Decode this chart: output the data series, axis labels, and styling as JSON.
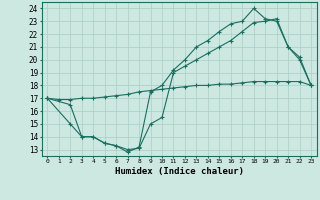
{
  "xlabel": "Humidex (Indice chaleur)",
  "bg_color": "#cce8e0",
  "grid_color": "#aacec8",
  "line_color": "#1a6e60",
  "xlim": [
    -0.5,
    23.5
  ],
  "ylim": [
    12.5,
    24.5
  ],
  "xticks": [
    0,
    1,
    2,
    3,
    4,
    5,
    6,
    7,
    8,
    9,
    10,
    11,
    12,
    13,
    14,
    15,
    16,
    17,
    18,
    19,
    20,
    21,
    22,
    23
  ],
  "yticks": [
    13,
    14,
    15,
    16,
    17,
    18,
    19,
    20,
    21,
    22,
    23,
    24
  ],
  "line1_x": [
    0,
    1,
    2,
    3,
    4,
    5,
    6,
    7,
    8,
    9,
    10,
    11,
    12,
    13,
    14,
    15,
    16,
    17,
    18,
    19,
    20,
    21,
    22,
    23
  ],
  "line1_y": [
    17.0,
    16.9,
    16.9,
    17.0,
    17.0,
    17.1,
    17.2,
    17.3,
    17.5,
    17.6,
    17.7,
    17.8,
    17.9,
    18.0,
    18.0,
    18.1,
    18.1,
    18.2,
    18.3,
    18.3,
    18.3,
    18.3,
    18.3,
    18.0
  ],
  "line2_x": [
    0,
    2,
    3,
    4,
    5,
    6,
    7,
    8,
    9,
    10,
    11,
    12,
    13,
    14,
    15,
    16,
    17,
    18,
    19,
    20,
    21,
    22,
    23
  ],
  "line2_y": [
    17.0,
    16.5,
    14.0,
    14.0,
    13.5,
    13.3,
    13.0,
    13.1,
    15.0,
    15.5,
    19.0,
    19.5,
    20.0,
    20.5,
    21.0,
    21.5,
    22.2,
    22.9,
    23.0,
    23.2,
    21.0,
    20.0,
    18.0
  ],
  "line3_x": [
    0,
    2,
    3,
    4,
    5,
    6,
    7,
    8,
    9,
    10,
    11,
    12,
    13,
    14,
    15,
    16,
    17,
    18,
    19,
    20,
    21,
    22,
    23
  ],
  "line3_y": [
    17.0,
    15.0,
    14.0,
    14.0,
    13.5,
    13.3,
    12.8,
    13.2,
    17.5,
    18.0,
    19.2,
    20.0,
    21.0,
    21.5,
    22.2,
    22.8,
    23.0,
    24.0,
    23.2,
    23.0,
    21.0,
    20.2,
    18.0
  ]
}
